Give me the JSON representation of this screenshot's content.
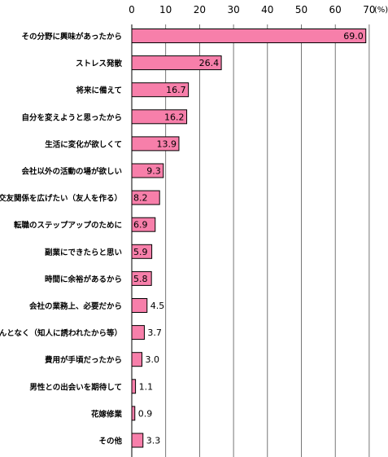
{
  "chart_data": {
    "type": "bar",
    "orientation": "horizontal",
    "unit": "(%)",
    "xlim": [
      0,
      70
    ],
    "ticks": [
      0,
      10,
      20,
      30,
      40,
      50,
      60,
      70
    ],
    "grid": true,
    "bar_color": "#f77faa",
    "categories": [
      "その分野に興味があったから",
      "ストレス発散",
      "将来に備えて",
      "自分を変えようと思ったから",
      "生活に変化が欲しくて",
      "会社以外の活動の場が欲しい",
      "交友関係を広げたい（友人を作る）",
      "転職のステップアップのために",
      "副業にできたらと思い",
      "時間に余裕があるから",
      "会社の業務上、必要だから",
      "なんとなく（知人に誘われたから等）",
      "費用が手頃だったから",
      "男性との出会いを期待して",
      "花嫁修業",
      "その他"
    ],
    "values": [
      69.0,
      26.4,
      16.7,
      16.2,
      13.9,
      9.3,
      8.2,
      6.9,
      5.9,
      5.8,
      4.5,
      3.7,
      3.0,
      1.1,
      0.9,
      3.3
    ],
    "value_labels": [
      "69.0",
      "26.4",
      "16.7",
      "16.2",
      "13.9",
      "9.3",
      "8.2",
      "6.9",
      "5.9",
      "5.8",
      "4.5",
      "3.7",
      "3.0",
      "1.1",
      "0.9",
      "3.3"
    ],
    "tick_labels": [
      "0",
      "10",
      "20",
      "30",
      "40",
      "50",
      "60",
      "70"
    ]
  }
}
